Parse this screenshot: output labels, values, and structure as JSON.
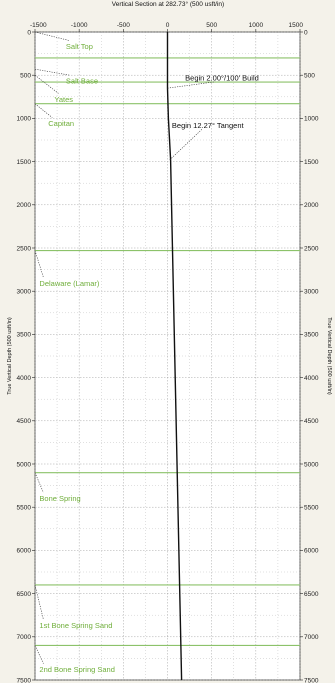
{
  "chart_data": {
    "type": "line",
    "title": "Vertical Section at 282.73° (500 usft/in)",
    "ylabel_left": "True Vertical Depth (500 usft/in)",
    "ylabel_right": "True Vertical Depth (500 usft/in)",
    "xlim": [
      -1500,
      1500
    ],
    "ylim": [
      0,
      7500
    ],
    "y_inverted": true,
    "x_ticks": [
      -1500,
      -1000,
      -500,
      0,
      500,
      1000,
      1500
    ],
    "y_ticks": [
      0,
      500,
      1000,
      1500,
      2000,
      2500,
      3000,
      3500,
      4000,
      4500,
      5000,
      5500,
      6000,
      6500,
      7000,
      7500
    ],
    "grid": true,
    "colors": {
      "well_path": "#111111",
      "formation": "#8cc26a",
      "formation_label": "#6fae3a",
      "grid": "#9a9a9a"
    },
    "series": [
      {
        "x": [
          0,
          0,
          10,
          35,
          160
        ],
        "y": [
          0,
          650,
          1000,
          1480,
          7500
        ]
      }
    ],
    "formations": [
      {
        "name": "Salt Top",
        "tvd": 300,
        "label_x": -1150,
        "label_y": 170,
        "leader_start_x": -1500,
        "leader_start_y": 0
      },
      {
        "name": "Salt Base",
        "tvd": 580,
        "label_x": -1150,
        "label_y": 570,
        "leader_start_x": -1500,
        "leader_start_y": 430
      },
      {
        "name": "Yates",
        "tvd": 830,
        "label_x": -1280,
        "label_y": 780,
        "leader_start_x": -1500,
        "leader_start_y": 500
      },
      {
        "name": "Capitan",
        "tvd": 830,
        "label_x": -1350,
        "label_y": 1060,
        "leader_start_x": -1500,
        "leader_start_y": 830
      },
      {
        "name": "Delaware (Lamar)",
        "tvd": 2530,
        "label_x": -1450,
        "label_y": 2910,
        "leader_start_x": -1500,
        "leader_start_y": 2530
      },
      {
        "name": "Bone Spring",
        "tvd": 5100,
        "label_x": -1450,
        "label_y": 5400,
        "leader_start_x": -1500,
        "leader_start_y": 5100
      },
      {
        "name": "1st Bone Spring Sand",
        "tvd": 6400,
        "label_x": -1450,
        "label_y": 6870,
        "leader_start_x": -1500,
        "leader_start_y": 6400
      },
      {
        "name": "2nd Bone Spring Sand",
        "tvd": 7100,
        "label_x": -1450,
        "label_y": 7380,
        "leader_start_x": -1500,
        "leader_start_y": 7100
      }
    ],
    "annotations": [
      {
        "text": "Begin 2.00°/100' Build",
        "x": 200,
        "y": 530,
        "point_x": 0,
        "point_y": 650
      },
      {
        "text": "Begin 12.27° Tangent",
        "x": 50,
        "y": 1080,
        "point_x": 25,
        "point_y": 1480
      }
    ]
  }
}
